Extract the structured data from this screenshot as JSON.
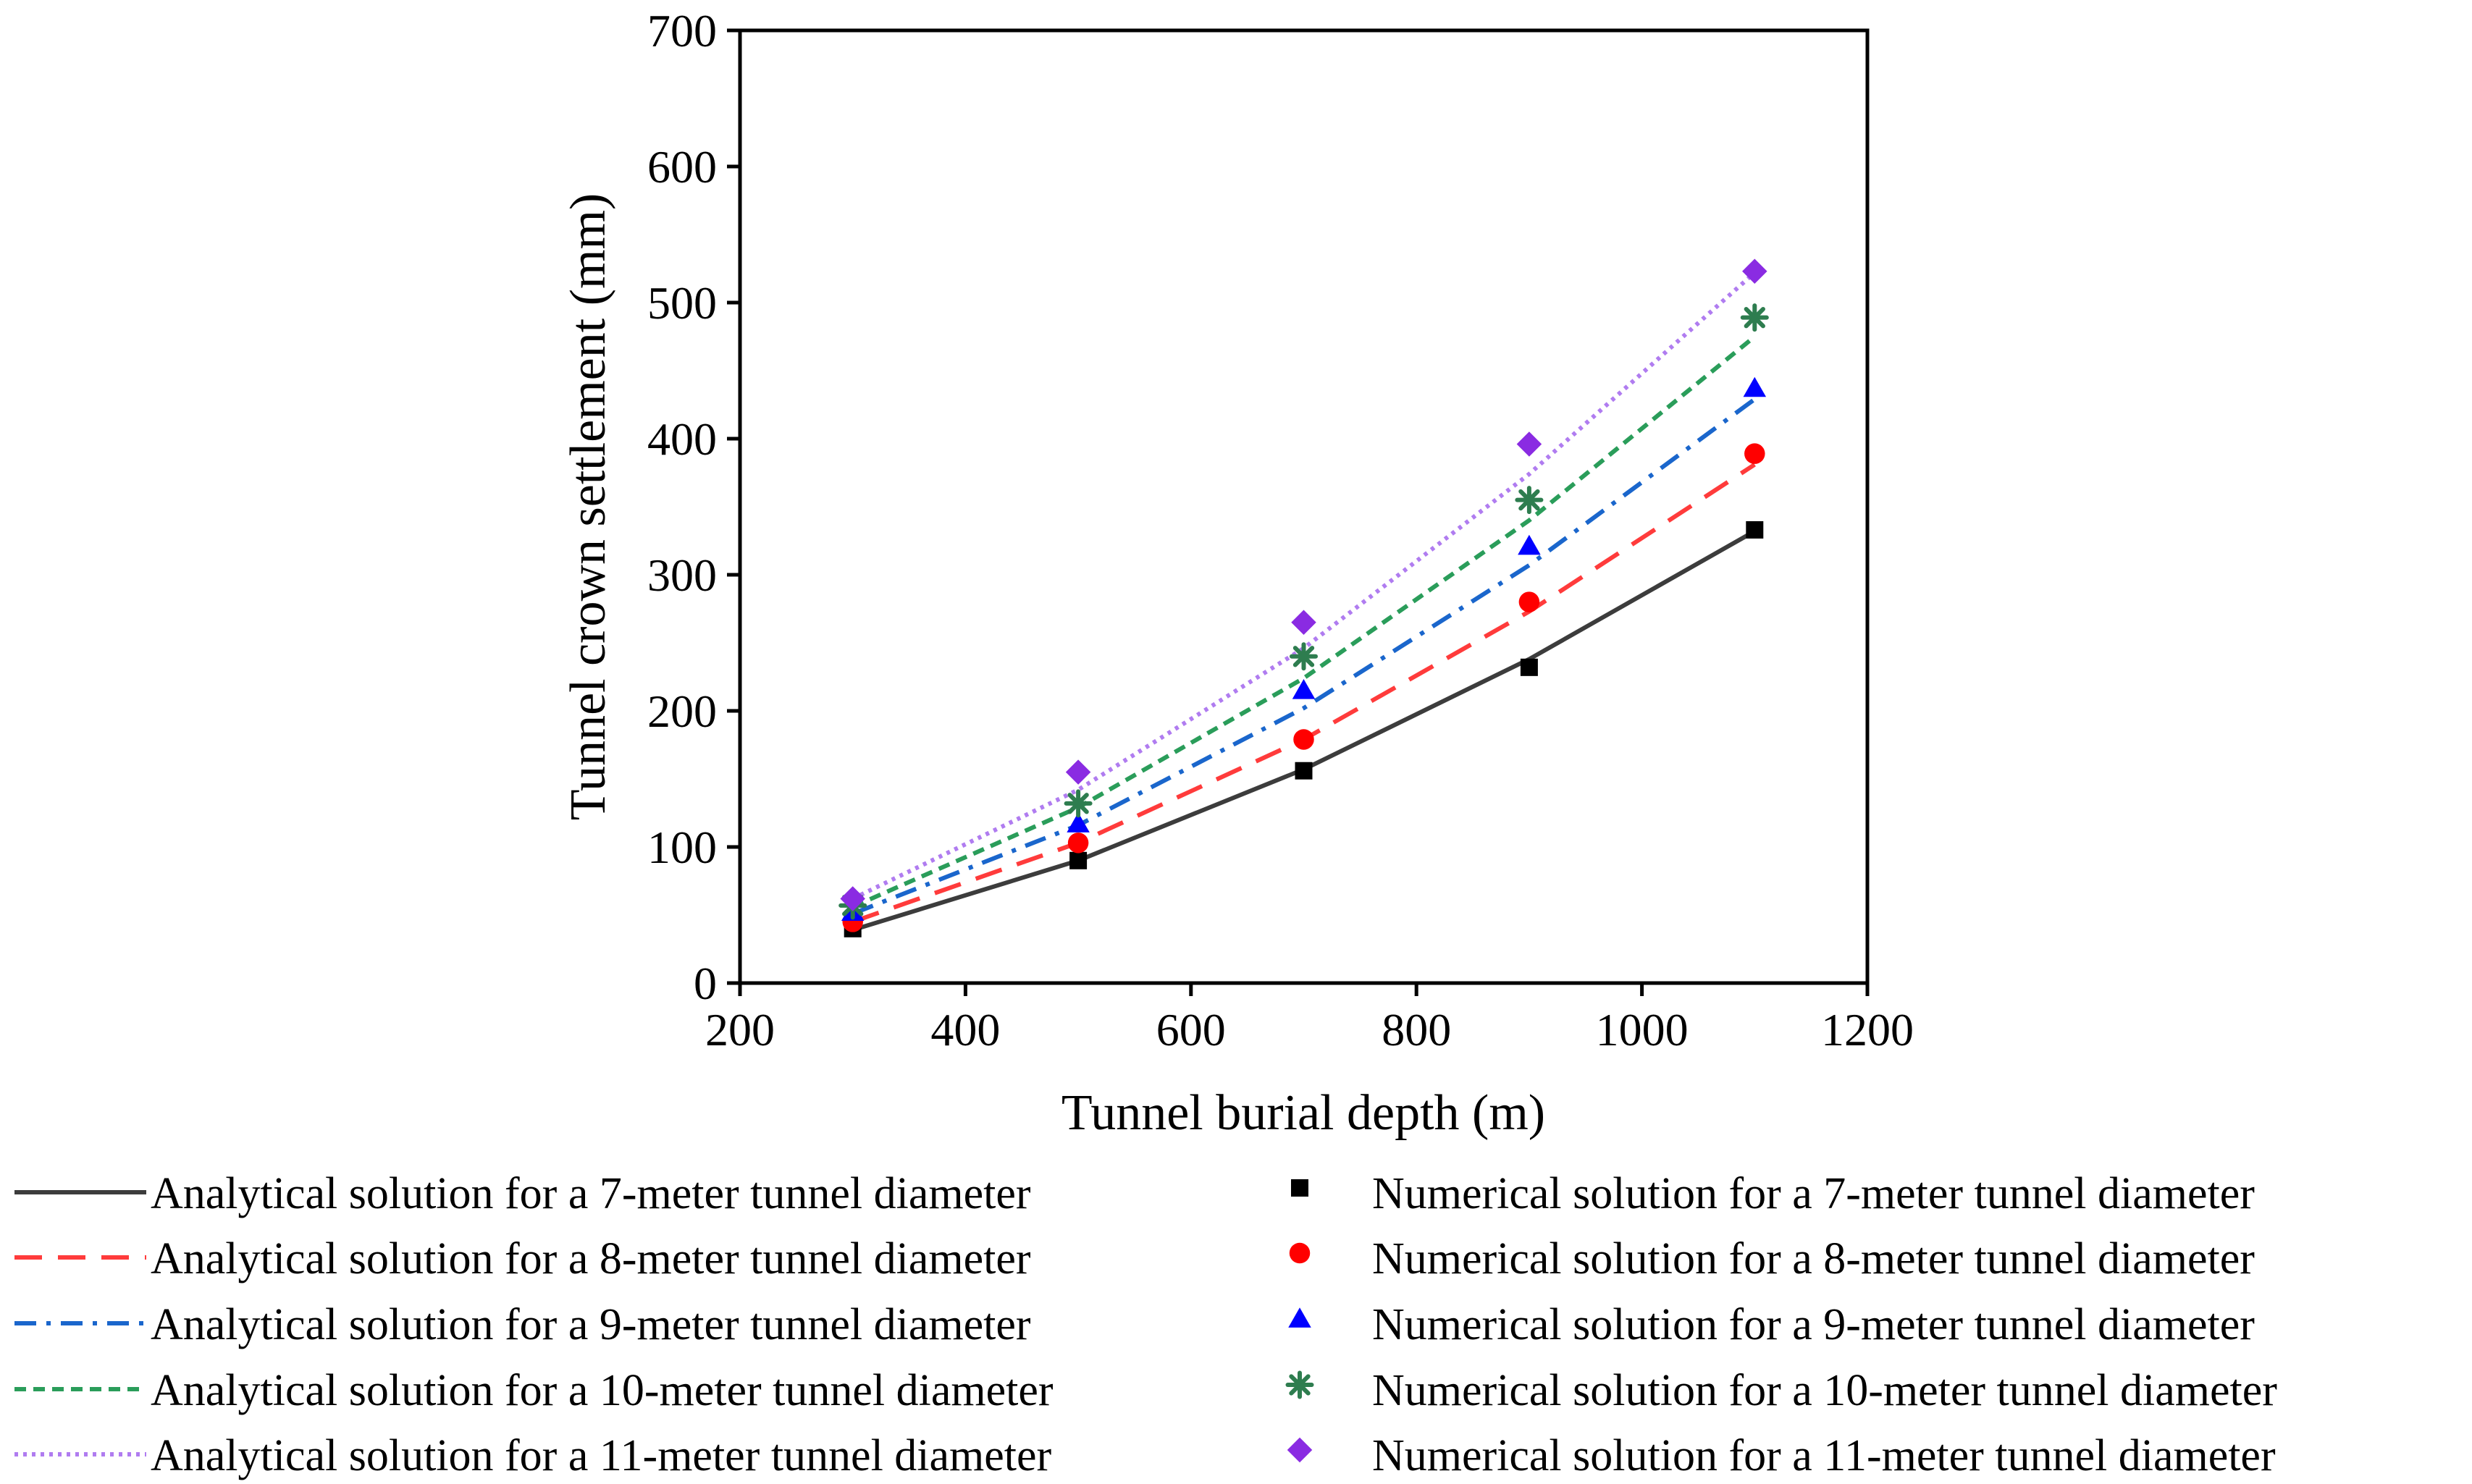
{
  "chart_data": {
    "type": "line",
    "title": "",
    "xlabel": "Tunnel burial depth (m)",
    "ylabel": "Tunnel crown settlement (mm)",
    "xlim": [
      200,
      1200
    ],
    "ylim": [
      0,
      700
    ],
    "xticks": [
      200,
      400,
      600,
      800,
      1000,
      1200
    ],
    "yticks": [
      0,
      100,
      200,
      300,
      400,
      500,
      600,
      700
    ],
    "grid": false,
    "legend_position": "below",
    "x": [
      300,
      500,
      700,
      900,
      1100
    ],
    "series": [
      {
        "name": "Analytical solution for a 7-meter tunnel diameter",
        "kind": "line",
        "line_style": "solid",
        "color": "#3c3c3c",
        "values": [
          39,
          90,
          157,
          238,
          332
        ]
      },
      {
        "name": "Analytical solution for a 8-meter tunnel diameter",
        "kind": "line",
        "line_style": "dashed",
        "color": "#ff3b3b",
        "values": [
          45,
          103,
          179,
          273,
          381
        ]
      },
      {
        "name": "Analytical solution for a 9-meter tunnel diameter",
        "kind": "line",
        "line_style": "dash-dot",
        "color": "#1a66cc",
        "values": [
          51,
          116,
          202,
          307,
          429
        ]
      },
      {
        "name": "Analytical solution for a 10-meter tunnel diameter",
        "kind": "line",
        "line_style": "short-dashed",
        "color": "#2a9d5a",
        "values": [
          56,
          129,
          224,
          340,
          475
        ]
      },
      {
        "name": "Analytical solution for a 11-meter tunnel diameter",
        "kind": "line",
        "line_style": "dotted",
        "color": "#b07cf0",
        "values": [
          62,
          142,
          246,
          374,
          522
        ]
      },
      {
        "name": "Numerical solution for a 7-meter tunnel diameter",
        "kind": "scatter",
        "marker": "square",
        "color": "#000000",
        "values": [
          40,
          90,
          156,
          232,
          333
        ]
      },
      {
        "name": "Numerical solution for a 8-meter tunnel diameter",
        "kind": "scatter",
        "marker": "circle",
        "color": "#ff0000",
        "values": [
          45,
          103,
          179,
          280,
          389
        ]
      },
      {
        "name": "Numerical solution for a 9-meter tunnel diameter",
        "kind": "scatter",
        "marker": "triangle",
        "color": "#0000ff",
        "values": [
          52,
          117,
          215,
          321,
          437
        ]
      },
      {
        "name": "Numerical solution for a 10-meter tunnel diameter",
        "kind": "scatter",
        "marker": "asterisk",
        "color": "#2e7d4f",
        "values": [
          57,
          132,
          240,
          355,
          489
        ]
      },
      {
        "name": "Numerical solution for a 11-meter tunnel diameter",
        "kind": "scatter",
        "marker": "diamond",
        "color": "#8a2be2",
        "values": [
          62,
          155,
          265,
          396,
          523
        ]
      }
    ]
  }
}
